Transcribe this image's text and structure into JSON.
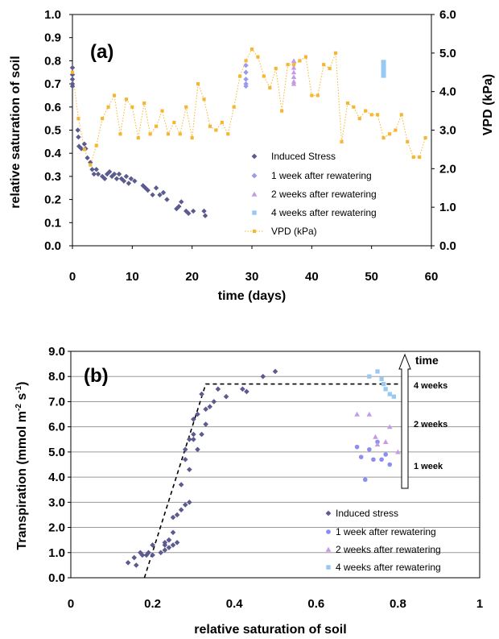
{
  "chart_data": [
    {
      "type": "scatter",
      "panel_label": "(a)",
      "xlabel": "time (days)",
      "ylabel": "relative saturation of soil",
      "y2label": "VPD (kPa)",
      "xlim": [
        0,
        60
      ],
      "ylim": [
        0,
        1
      ],
      "y2lim": [
        0,
        6
      ],
      "xticks": [
        "0",
        "10",
        "20",
        "30",
        "40",
        "50",
        "60"
      ],
      "yticks": [
        "0.0",
        "0.1",
        "0.2",
        "0.3",
        "0.4",
        "0.5",
        "0.6",
        "0.7",
        "0.8",
        "0.9",
        "1.0"
      ],
      "y2ticks": [
        "0.0",
        "1.0",
        "2.0",
        "3.0",
        "4.0",
        "5.0",
        "6.0"
      ],
      "grid": false,
      "legend_position": "bottom-right",
      "series": [
        {
          "name": "Induced Stress",
          "axis": "left",
          "marker": "diamond",
          "color": "#5b5b8f",
          "x": [
            0,
            0,
            0,
            0,
            0,
            0.9,
            1,
            1.1,
            1.5,
            2,
            2.2,
            2.5,
            3,
            3.3,
            3.6,
            4,
            4.3,
            5,
            5.4,
            5.8,
            6.2,
            6.6,
            7,
            7.4,
            7.8,
            8.2,
            8.6,
            9,
            9.4,
            9.8,
            10.4,
            11.8,
            12.2,
            12.6,
            13.4,
            14,
            14.6,
            15.2,
            15.8,
            17.4,
            17.8,
            18.2,
            19,
            19.4,
            20.2,
            22,
            22.2
          ],
          "y": [
            0.77,
            0.74,
            0.72,
            0.7,
            0.69,
            0.5,
            0.47,
            0.43,
            0.42,
            0.44,
            0.42,
            0.38,
            0.36,
            0.33,
            0.31,
            0.33,
            0.31,
            0.3,
            0.29,
            0.31,
            0.32,
            0.3,
            0.31,
            0.29,
            0.31,
            0.29,
            0.28,
            0.3,
            0.27,
            0.29,
            0.28,
            0.26,
            0.25,
            0.24,
            0.22,
            0.25,
            0.22,
            0.23,
            0.2,
            0.16,
            0.17,
            0.19,
            0.15,
            0.14,
            0.15,
            0.15,
            0.13
          ]
        },
        {
          "name": "1 week after rewatering",
          "axis": "left",
          "marker": "diamond",
          "color": "#9999ee",
          "x": [
            29,
            29,
            29,
            29,
            29
          ],
          "y": [
            0.78,
            0.75,
            0.72,
            0.7,
            0.69
          ]
        },
        {
          "name": "2 weeks after rewatering",
          "axis": "left",
          "marker": "triangle",
          "color": "#c79ae6",
          "x": [
            37,
            37,
            37,
            37,
            37,
            37
          ],
          "y": [
            0.8,
            0.77,
            0.75,
            0.73,
            0.71,
            0.7
          ]
        },
        {
          "name": "4 weeks after rewatering",
          "axis": "left",
          "marker": "square",
          "color": "#99c9f2",
          "x": [
            52,
            52,
            52,
            52,
            52
          ],
          "y": [
            0.79,
            0.77,
            0.76,
            0.75,
            0.74
          ]
        },
        {
          "name": "VPD (kPa)",
          "axis": "right",
          "marker": "square",
          "line": "dotted",
          "color": "#f5b731",
          "x": [
            0,
            1,
            2,
            3,
            4,
            5,
            6,
            7,
            8,
            9,
            10,
            11,
            12,
            13,
            14,
            15,
            16,
            17,
            18,
            19,
            20,
            21,
            22,
            23,
            24,
            25,
            26,
            27,
            28,
            29,
            30,
            31,
            32,
            33,
            34,
            35,
            36,
            37,
            38,
            39,
            40,
            41,
            42,
            43,
            44,
            45,
            46,
            47,
            48,
            49,
            50,
            51,
            52,
            53,
            54,
            55,
            56,
            57,
            58,
            59
          ],
          "y": [
            4.5,
            3.3,
            2.5,
            2.1,
            2.6,
            3.3,
            3.6,
            3.9,
            2.9,
            3.8,
            3.6,
            2.8,
            3.7,
            2.9,
            3.1,
            3.5,
            2.9,
            3.2,
            2.9,
            3.6,
            2.8,
            4.2,
            3.8,
            3.1,
            3.0,
            3.2,
            2.9,
            3.6,
            4.4,
            4.8,
            5.1,
            4.9,
            4.4,
            4.1,
            4.6,
            3.5,
            4.7,
            4.7,
            4.8,
            4.9,
            3.9,
            3.9,
            4.7,
            4.6,
            5.0,
            2.7,
            3.7,
            3.6,
            3.3,
            3.5,
            3.4,
            3.4,
            2.8,
            2.9,
            3.0,
            3.4,
            2.7,
            2.3,
            2.3,
            2.8
          ]
        }
      ]
    },
    {
      "type": "scatter",
      "panel_label": "(b)",
      "xlabel": "relative saturation of soil",
      "ylabel": "Transpiration (mmol m-2 s-1)",
      "ylabel_parts": {
        "base": "Transpiration (mmol m",
        "exp1": "-2",
        "mid": " s",
        "exp2": "-1",
        "end": ")"
      },
      "xlim": [
        0,
        1
      ],
      "ylim": [
        0,
        9
      ],
      "xticks": [
        "0",
        "0.2",
        "0.4",
        "0.6",
        "0.8",
        "1"
      ],
      "yticks": [
        "0.0",
        "1.0",
        "2.0",
        "3.0",
        "4.0",
        "5.0",
        "6.0",
        "7.0",
        "8.0",
        "9.0"
      ],
      "grid": true,
      "legend_position": "bottom-right",
      "annotations": {
        "time_label": "time",
        "labels": [
          "4 weeks",
          "2 weeks",
          "1 week"
        ]
      },
      "fit_line": {
        "x": [
          0.18,
          0.33,
          0.82
        ],
        "y": [
          0.0,
          7.7,
          7.7
        ]
      },
      "series": [
        {
          "name": "Induced stress",
          "marker": "diamond",
          "color": "#5b5b8f",
          "x": [
            0.14,
            0.155,
            0.16,
            0.17,
            0.175,
            0.185,
            0.19,
            0.2,
            0.2,
            0.23,
            0.24,
            0.24,
            0.25,
            0.26,
            0.27,
            0.28,
            0.28,
            0.29,
            0.29,
            0.3,
            0.3,
            0.3,
            0.31,
            0.31,
            0.32,
            0.32,
            0.33,
            0.33,
            0.34,
            0.35,
            0.36,
            0.38,
            0.42,
            0.43,
            0.47,
            0.5,
            0.22,
            0.23,
            0.23,
            0.24,
            0.25,
            0.25,
            0.26,
            0.27,
            0.28,
            0.29
          ],
          "y": [
            0.6,
            0.8,
            0.5,
            1.0,
            0.9,
            0.9,
            1.0,
            0.9,
            1.3,
            1.1,
            1.5,
            1.2,
            2.4,
            2.5,
            3.7,
            5.1,
            4.7,
            4.3,
            5.5,
            5.7,
            6.3,
            5.5,
            6.5,
            5.1,
            5.7,
            7.3,
            6.7,
            6.1,
            6.8,
            7.0,
            7.5,
            7.2,
            7.5,
            7.4,
            8.0,
            8.2,
            1.0,
            1.4,
            1.3,
            1.5,
            1.8,
            1.3,
            1.4,
            2.7,
            2.9,
            3.0
          ]
        },
        {
          "name": "1 week after rewatering",
          "marker": "circle",
          "color": "#8a8ef0",
          "x": [
            0.7,
            0.71,
            0.72,
            0.73,
            0.74,
            0.75,
            0.76,
            0.77,
            0.78
          ],
          "y": [
            5.2,
            4.8,
            3.9,
            5.1,
            4.7,
            5.4,
            4.7,
            4.9,
            4.5
          ]
        },
        {
          "name": "2 weeks after rewatering",
          "marker": "triangle",
          "color": "#c79ae6",
          "x": [
            0.7,
            0.73,
            0.745,
            0.75,
            0.77,
            0.78,
            0.8
          ],
          "y": [
            6.5,
            6.5,
            5.6,
            5.3,
            5.4,
            6.0,
            5.0
          ]
        },
        {
          "name": "4 weeks after rewatering",
          "marker": "square",
          "color": "#99c9f2",
          "x": [
            0.73,
            0.75,
            0.76,
            0.765,
            0.77,
            0.78,
            0.79
          ],
          "y": [
            8.0,
            8.2,
            7.9,
            7.7,
            7.5,
            7.3,
            7.2
          ]
        }
      ]
    }
  ]
}
